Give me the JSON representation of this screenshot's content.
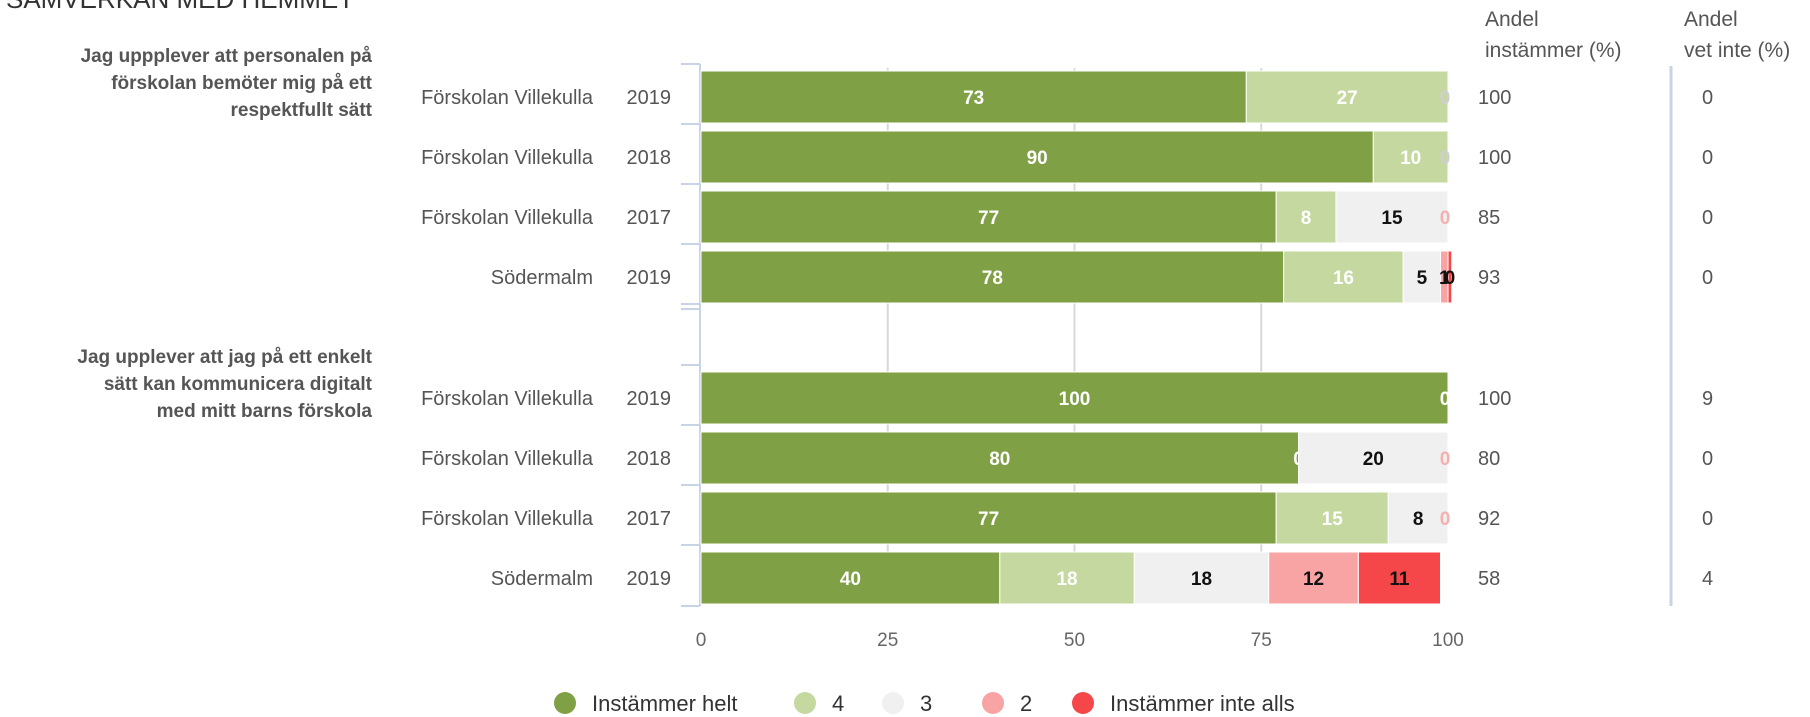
{
  "chart_data": {
    "type": "bar",
    "stacked": true,
    "orientation": "horizontal",
    "title": "SAMVERKAN MED HEMMET",
    "xlim": [
      0,
      100
    ],
    "x_ticks": [
      "0",
      "25",
      "50",
      "75",
      "100"
    ],
    "grid": true,
    "legend_position": "bottom",
    "series": [
      {
        "name": "Instämmer helt",
        "color": "#80a045"
      },
      {
        "name": "4",
        "color": "#c4d89f"
      },
      {
        "name": "3",
        "color": "#f0f0f0"
      },
      {
        "name": "2",
        "color": "#f8a4a4"
      },
      {
        "name": "Instämmer inte alls",
        "color": "#f54749"
      }
    ],
    "extra_columns": [
      {
        "header": [
          "Andel",
          "instämmer (%)"
        ]
      },
      {
        "header": [
          "Andel",
          "vet inte (%)"
        ]
      }
    ],
    "groups": [
      {
        "question": [
          "Jag uppplever att personalen på",
          "förskolan bemöter mig på ett",
          "respektfullt sätt"
        ],
        "rows": [
          {
            "unit": "Förskolan Villekulla",
            "year": "2019",
            "values": [
              73,
              27,
              0,
              0,
              0
            ],
            "labels": [
              "73",
              "27",
              "0",
              "",
              ""
            ],
            "andel_instammer": "100",
            "andel_vet_inte": "0"
          },
          {
            "unit": "Förskolan Villekulla",
            "year": "2018",
            "values": [
              90,
              10,
              0,
              0,
              0
            ],
            "labels": [
              "90",
              "10",
              "0",
              "",
              ""
            ],
            "andel_instammer": "100",
            "andel_vet_inte": "0"
          },
          {
            "unit": "Förskolan Villekulla",
            "year": "2017",
            "values": [
              77,
              8,
              15,
              0,
              0
            ],
            "labels": [
              "77",
              "8",
              "15",
              "0",
              ""
            ],
            "andel_instammer": "85",
            "andel_vet_inte": "0"
          },
          {
            "unit": "Södermalm",
            "year": "2019",
            "values": [
              78,
              16,
              5,
              1,
              0.5
            ],
            "labels": [
              "78",
              "16",
              "5",
              "1",
              "0"
            ],
            "andel_instammer": "93",
            "andel_vet_inte": "0"
          }
        ]
      },
      {
        "question": [
          "Jag upplever att jag på ett enkelt",
          "sätt kan kommunicera digitalt",
          "med mitt barns förskola"
        ],
        "rows": [
          {
            "unit": "Förskolan Villekulla",
            "year": "2019",
            "values": [
              100,
              0,
              0,
              0,
              0
            ],
            "labels": [
              "100",
              "0",
              "",
              "",
              ""
            ],
            "andel_instammer": "100",
            "andel_vet_inte": "9"
          },
          {
            "unit": "Förskolan Villekulla",
            "year": "2018",
            "values": [
              80,
              0,
              20,
              0,
              0
            ],
            "labels": [
              "80",
              "0",
              "20",
              "0",
              ""
            ],
            "andel_instammer": "80",
            "andel_vet_inte": "0"
          },
          {
            "unit": "Förskolan Villekulla",
            "year": "2017",
            "values": [
              77,
              15,
              8,
              0,
              0
            ],
            "labels": [
              "77",
              "15",
              "8",
              "0",
              ""
            ],
            "andel_instammer": "92",
            "andel_vet_inte": "0"
          },
          {
            "unit": "Södermalm",
            "year": "2019",
            "values": [
              40,
              18,
              18,
              12,
              11
            ],
            "labels": [
              "40",
              "18",
              "18",
              "12",
              "11"
            ],
            "andel_instammer": "58",
            "andel_vet_inte": "4"
          }
        ]
      }
    ]
  }
}
